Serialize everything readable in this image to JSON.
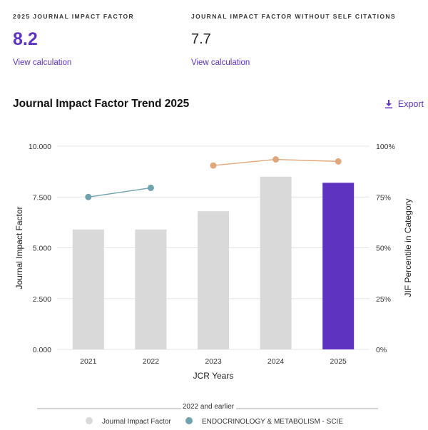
{
  "metrics": [
    {
      "label": "2025 JOURNAL IMPACT FACTOR",
      "value": "8.2",
      "link": "View calculation"
    },
    {
      "label": "JOURNAL IMPACT FACTOR WITHOUT SELF CITATIONS",
      "value": "7.7",
      "link": "View calculation"
    }
  ],
  "section": {
    "title": "Journal Impact Factor Trend 2025"
  },
  "export": {
    "label": "Export",
    "icon": "download-icon"
  },
  "colors": {
    "accent": "#5e33bf",
    "bar_default": "#d9d9d9",
    "bar_highlight": "#5e33bf",
    "percentile_early": "#6fa2ad",
    "percentile_late": "#e0a77a"
  },
  "chart_data": {
    "type": "bar",
    "categories": [
      "2021",
      "2022",
      "2023",
      "2024",
      "2025"
    ],
    "xlabel": "JCR Years",
    "ylabel": "Journal Impact Factor",
    "ylabel_right": "JIF Percentile in Category",
    "ylim": [
      0,
      10
    ],
    "yticks": [
      "0.000",
      "2.500",
      "5.000",
      "7.500",
      "10.000"
    ],
    "ylim_right": [
      0,
      100
    ],
    "yticks_right": [
      "0%",
      "25%",
      "50%",
      "75%",
      "100%"
    ],
    "highlight_category": "2025",
    "series": [
      {
        "name": "Journal Impact Factor",
        "type": "bar",
        "axis": "left",
        "values": [
          5.9,
          5.9,
          6.8,
          8.5,
          8.2
        ]
      },
      {
        "name": "ENDOCRINOLOGY & METABOLISM - SCIE",
        "type": "line",
        "axis": "right",
        "values": [
          75,
          79.5,
          null,
          null,
          null
        ]
      },
      {
        "type": "line",
        "axis": "right",
        "values": [
          null,
          null,
          90.5,
          93.5,
          92.5
        ]
      }
    ],
    "legend": {
      "position": "bottom",
      "header": "2022 and earlier",
      "items": [
        {
          "label": "Journal Impact Factor",
          "color": "#d9d9d9"
        },
        {
          "label": "ENDOCRINOLOGY & METABOLISM - SCIE",
          "color": "#6fa2ad"
        }
      ]
    }
  }
}
